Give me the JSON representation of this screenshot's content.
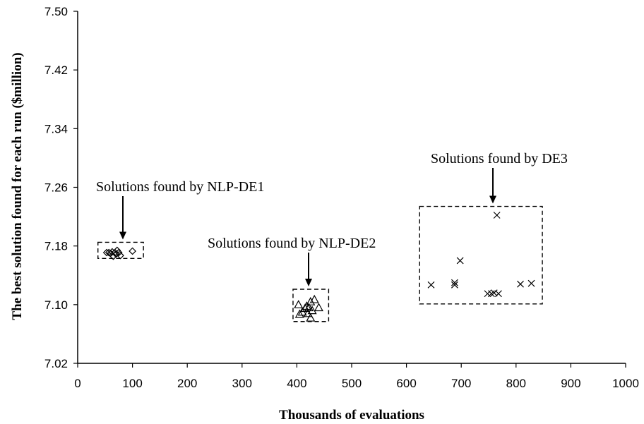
{
  "chart_data": {
    "type": "scatter",
    "xlabel": "Thousands of evaluations",
    "ylabel": "The best solution found for each run ($million)",
    "xlim": [
      0,
      1000
    ],
    "ylim": [
      7.02,
      7.5
    ],
    "x_ticks": [
      0,
      100,
      200,
      300,
      400,
      500,
      600,
      700,
      800,
      900,
      1000
    ],
    "y_ticks": [
      "7.02",
      "7.10",
      "7.18",
      "7.26",
      "7.34",
      "7.42",
      "7.50"
    ],
    "grid": false,
    "series": [
      {
        "marker": "diamond",
        "points": [
          {
            "x": 53,
            "y": 7.171
          },
          {
            "x": 57,
            "y": 7.171
          },
          {
            "x": 60,
            "y": 7.17
          },
          {
            "x": 63,
            "y": 7.172
          },
          {
            "x": 65,
            "y": 7.166
          },
          {
            "x": 68,
            "y": 7.171
          },
          {
            "x": 70,
            "y": 7.169
          },
          {
            "x": 72,
            "y": 7.174
          },
          {
            "x": 75,
            "y": 7.171
          },
          {
            "x": 78,
            "y": 7.167
          },
          {
            "x": 100,
            "y": 7.173
          }
        ]
      },
      {
        "marker": "triangle",
        "points": [
          {
            "x": 403,
            "y": 7.1
          },
          {
            "x": 405,
            "y": 7.087
          },
          {
            "x": 410,
            "y": 7.09
          },
          {
            "x": 415,
            "y": 7.095
          },
          {
            "x": 418,
            "y": 7.098
          },
          {
            "x": 420,
            "y": 7.088
          },
          {
            "x": 422,
            "y": 7.096
          },
          {
            "x": 425,
            "y": 7.104
          },
          {
            "x": 425,
            "y": 7.082
          },
          {
            "x": 428,
            "y": 7.092
          },
          {
            "x": 432,
            "y": 7.107
          },
          {
            "x": 440,
            "y": 7.096
          }
        ]
      },
      {
        "marker": "cross",
        "points": [
          {
            "x": 645,
            "y": 7.127
          },
          {
            "x": 688,
            "y": 7.13
          },
          {
            "x": 688,
            "y": 7.127
          },
          {
            "x": 698,
            "y": 7.16
          },
          {
            "x": 748,
            "y": 7.115
          },
          {
            "x": 755,
            "y": 7.115
          },
          {
            "x": 760,
            "y": 7.116
          },
          {
            "x": 765,
            "y": 7.222
          },
          {
            "x": 768,
            "y": 7.115
          },
          {
            "x": 808,
            "y": 7.128
          },
          {
            "x": 828,
            "y": 7.129
          }
        ]
      }
    ],
    "annotations": [
      {
        "text": "Solutions found by NLP-DE1",
        "box": {
          "x0": 37,
          "x1": 120,
          "y0": 7.163,
          "y1": 7.185
        }
      },
      {
        "text": "Solutions found by NLP-DE2",
        "box": {
          "x0": 393,
          "x1": 458,
          "y0": 7.077,
          "y1": 7.121
        }
      },
      {
        "text": "Solutions found by DE3",
        "box": {
          "x0": 624,
          "x1": 848,
          "y0": 7.101,
          "y1": 7.234
        }
      }
    ]
  }
}
